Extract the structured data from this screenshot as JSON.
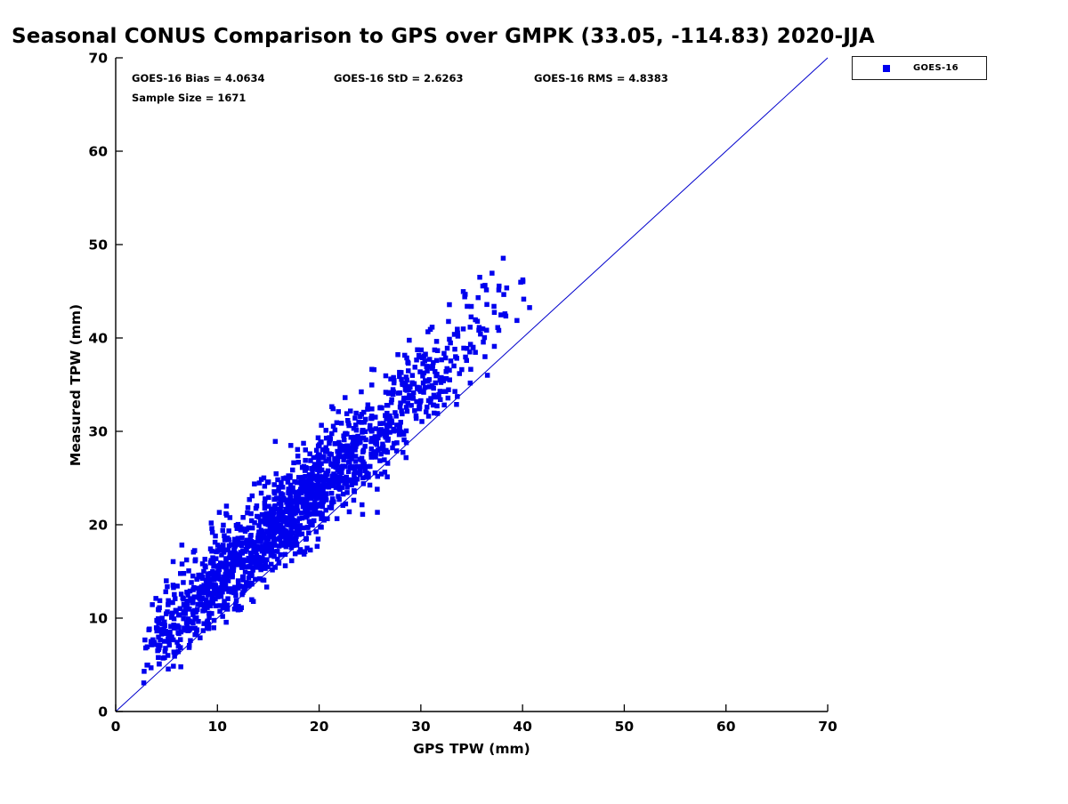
{
  "title": "Seasonal CONUS Comparison to GPS over GMPK (33.05, -114.83) 2020-JJA",
  "annotations": {
    "bias": "GOES-16 Bias = 4.0634",
    "std": "GOES-16 StD = 2.6263",
    "rms": "GOES-16 RMS = 4.8383",
    "sample": "Sample Size = 1671"
  },
  "legend": {
    "label": "GOES-16",
    "marker_color": "#0000ee"
  },
  "chart_data": {
    "type": "scatter",
    "title": "Seasonal CONUS Comparison to GPS over GMPK (33.05, -114.83) 2020-JJA",
    "xlabel": "GPS TPW (mm)",
    "ylabel": "Measured TPW (mm)",
    "xlim": [
      0,
      70
    ],
    "ylim": [
      0,
      70
    ],
    "xticks": [
      0,
      10,
      20,
      30,
      40,
      50,
      60,
      70
    ],
    "yticks": [
      0,
      10,
      20,
      30,
      40,
      50,
      60,
      70
    ],
    "grid": false,
    "legend_position": "outside-top-right",
    "series": [
      {
        "name": "GOES-16",
        "marker": "filled-square",
        "color": "#0000ee",
        "sample_size": 1671,
        "bias": 4.0634,
        "std": 2.6263,
        "rms": 4.8383,
        "x_range": [
          2.5,
          41
        ],
        "y_range": [
          3,
          49
        ]
      }
    ],
    "reference_line": {
      "x": [
        0,
        70
      ],
      "y": [
        0,
        70
      ],
      "color": "#0000cc",
      "width": 1
    }
  }
}
